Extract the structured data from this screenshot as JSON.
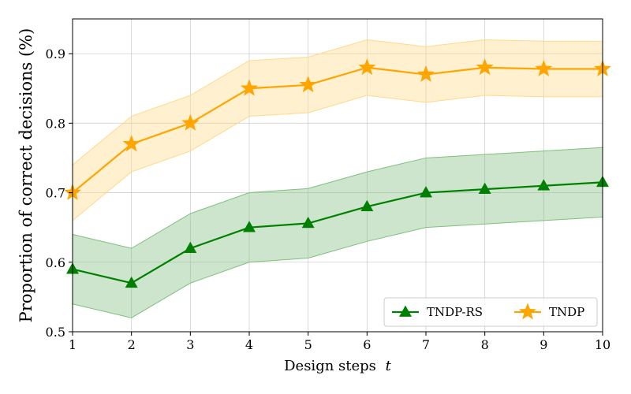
{
  "chart_data": {
    "type": "line",
    "xlabel": "Design steps",
    "xlabel_var": "t",
    "ylabel": "Proportion of correct decisions (%)",
    "xlim": [
      1,
      10
    ],
    "ylim": [
      0.5,
      0.95
    ],
    "x_ticks": [
      1,
      2,
      3,
      4,
      5,
      6,
      7,
      8,
      9,
      10
    ],
    "y_ticks": [
      0.5,
      0.6,
      0.7,
      0.8,
      0.9
    ],
    "y_tick_labels": [
      "0.5",
      "0.6",
      "0.7",
      "0.8",
      "0.9"
    ],
    "grid": true,
    "legend_position": "bottom-right",
    "x": [
      1,
      2,
      3,
      4,
      5,
      6,
      7,
      8,
      9,
      10
    ],
    "series": [
      {
        "name": "TNDP-RS",
        "color": "#008000",
        "band_color": "#7fbf7f",
        "marker": "triangle",
        "values": [
          0.59,
          0.57,
          0.62,
          0.65,
          0.656,
          0.68,
          0.7,
          0.705,
          0.71,
          0.715
        ],
        "lower": [
          0.54,
          0.52,
          0.57,
          0.6,
          0.606,
          0.63,
          0.65,
          0.655,
          0.66,
          0.665
        ],
        "upper": [
          0.64,
          0.62,
          0.67,
          0.7,
          0.706,
          0.73,
          0.75,
          0.755,
          0.76,
          0.765
        ]
      },
      {
        "name": "TNDP",
        "color": "#FFA500",
        "band_color": "#ffd98a",
        "marker": "star",
        "values": [
          0.7,
          0.77,
          0.8,
          0.85,
          0.855,
          0.88,
          0.87,
          0.88,
          0.878,
          0.878
        ],
        "lower": [
          0.66,
          0.73,
          0.76,
          0.81,
          0.815,
          0.84,
          0.83,
          0.84,
          0.838,
          0.838
        ],
        "upper": [
          0.74,
          0.81,
          0.84,
          0.89,
          0.895,
          0.92,
          0.91,
          0.92,
          0.918,
          0.918
        ]
      }
    ]
  }
}
